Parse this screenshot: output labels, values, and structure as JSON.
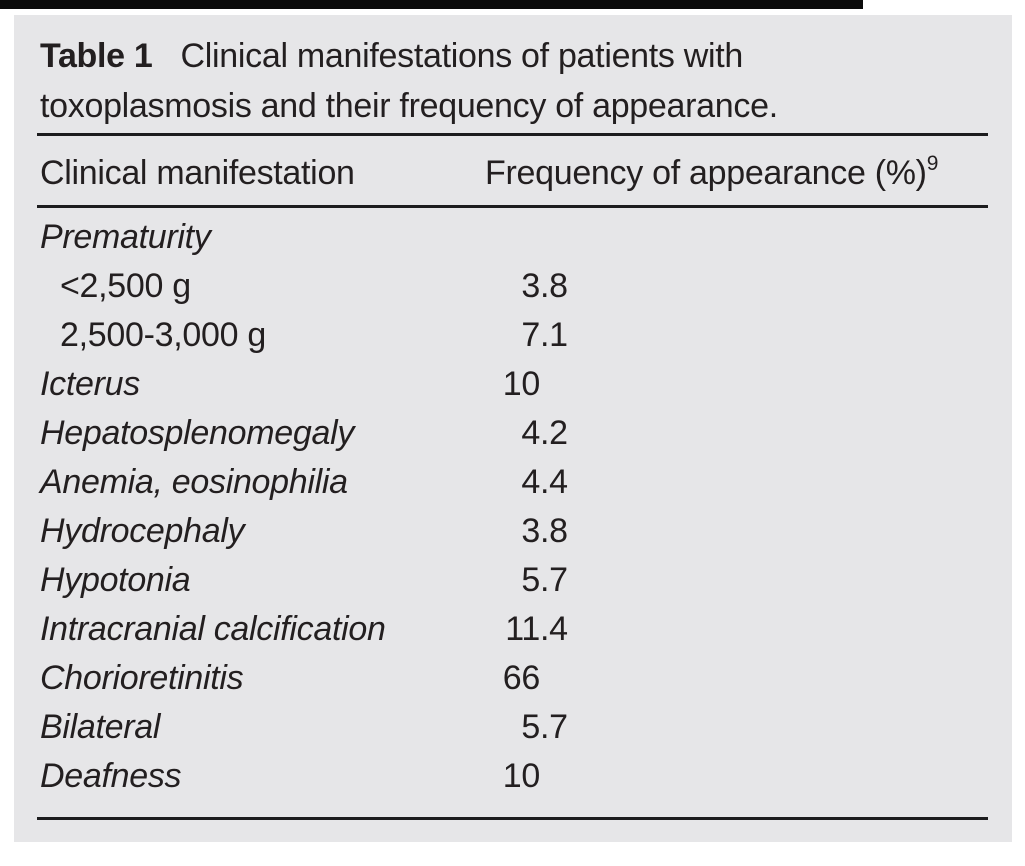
{
  "page": {
    "background": "#ffffff",
    "panel_background": "#e6e6e8",
    "text_color": "#231f20",
    "rule_color": "#1c1c1e",
    "top_bar_color": "#0b0b0b"
  },
  "table": {
    "title_label": "Table 1",
    "title_text": "Clinical manifestations of patients with toxoplasmosis and their frequency of appearance.",
    "header": {
      "manifestation": "Clinical manifestation",
      "frequency": "Frequency of appearance (%)",
      "frequency_reference": "9"
    },
    "rows": [
      {
        "label": "Prematurity",
        "subitem": false,
        "value": ""
      },
      {
        "label": "<2,500 g",
        "subitem": true,
        "value": "3.8"
      },
      {
        "label": "2,500-3,000 g",
        "subitem": true,
        "value": "7.1"
      },
      {
        "label": "Icterus",
        "subitem": false,
        "value": "10"
      },
      {
        "label": "Hepatosplenomegaly",
        "subitem": false,
        "value": "4.2"
      },
      {
        "label": "Anemia, eosinophilia",
        "subitem": false,
        "value": "4.4"
      },
      {
        "label": "Hydrocephaly",
        "subitem": false,
        "value": "3.8"
      },
      {
        "label": "Hypotonia",
        "subitem": false,
        "value": "5.7"
      },
      {
        "label": "Intracranial calcification",
        "subitem": false,
        "value": "11.4"
      },
      {
        "label": "Chorioretinitis",
        "subitem": false,
        "value": "66"
      },
      {
        "label": "Bilateral",
        "subitem": false,
        "value": "5.7"
      },
      {
        "label": "Deafness",
        "subitem": false,
        "value": "10"
      }
    ]
  }
}
